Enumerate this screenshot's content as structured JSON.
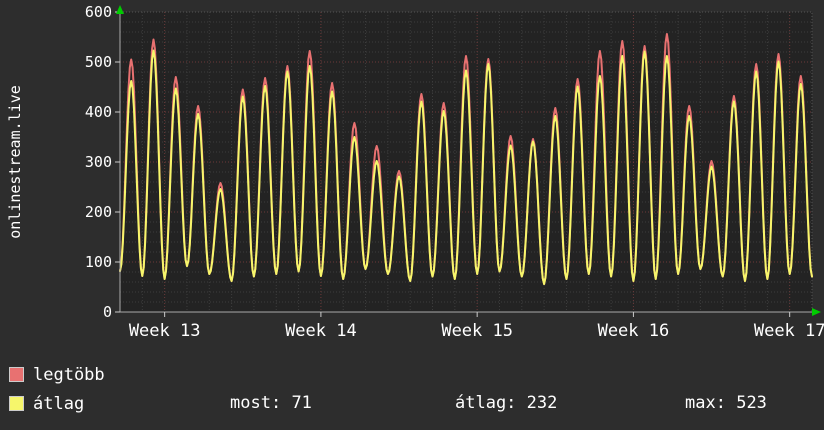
{
  "chart_data": {
    "type": "line",
    "title": "",
    "ylabel": "onlinestream.live",
    "ylim": [
      0,
      600
    ],
    "yticks": [
      0,
      100,
      200,
      300,
      400,
      500,
      600
    ],
    "y_minor_step": 20,
    "x_axis": {
      "tick_labels": [
        "Week 13",
        "Week 14",
        "Week 15",
        "Week 16",
        "Week 17"
      ],
      "week_start_days": [
        2,
        9,
        16,
        23,
        30
      ],
      "days_total": 31
    },
    "series": [
      {
        "name": "legtöbb",
        "role": "daily maximum viewers",
        "color": "#e87171",
        "peaks": [
          505,
          545,
          470,
          412,
          258,
          445,
          468,
          492,
          522,
          458,
          378,
          332,
          282,
          436,
          418,
          512,
          506,
          352,
          346,
          408,
          466,
          522,
          542,
          532,
          556,
          412,
          302,
          432,
          496,
          516,
          472
        ]
      },
      {
        "name": "átlag",
        "role": "daily average viewers",
        "color": "#f6f66b",
        "peaks": [
          462,
          523,
          447,
          396,
          246,
          431,
          452,
          481,
          492,
          441,
          350,
          302,
          271,
          421,
          402,
          483,
          496,
          333,
          341,
          392,
          451,
          472,
          512,
          521,
          512,
          392,
          291,
          421,
          481,
          501,
          456
        ]
      }
    ],
    "troughs": [
      82,
      72,
      66,
      92,
      76,
      62,
      71,
      76,
      81,
      72,
      66,
      86,
      76,
      62,
      71,
      66,
      76,
      81,
      71,
      56,
      66,
      76,
      71,
      62,
      66,
      76,
      86,
      71,
      62,
      66,
      76,
      71
    ],
    "grid": {
      "minor_color": "#3d3d3d",
      "major_color": "#6b3a3a",
      "border_color": "#555555",
      "axis_color": "#aaaaaa",
      "arrow_color": "#00cc00"
    },
    "legend_position": "bottom-left"
  },
  "legend": {
    "items": [
      {
        "label": "legtöbb",
        "color": "#e87171"
      },
      {
        "label": "átlag",
        "color": "#f6f66b"
      }
    ],
    "stats": [
      {
        "label": "most:",
        "value": "71"
      },
      {
        "label": "átlag:",
        "value": "232"
      },
      {
        "label": "max:",
        "value": "523"
      }
    ]
  },
  "colors": {
    "background": "#2d2d2d",
    "plot_background": "#232323",
    "text": "#ffffff"
  }
}
